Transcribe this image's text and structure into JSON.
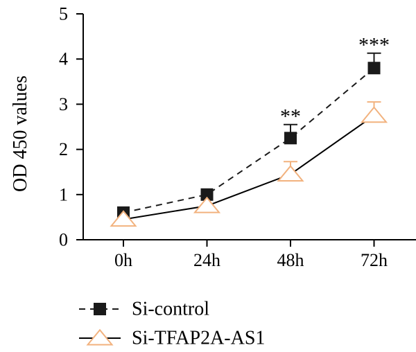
{
  "chart_data": {
    "type": "line",
    "title": "",
    "xlabel": "",
    "ylabel": "OD 450 values",
    "categories": [
      "0h",
      "24h",
      "48h",
      "72h"
    ],
    "ylim": [
      0,
      5
    ],
    "yticks": [
      0,
      1,
      2,
      3,
      4,
      5
    ],
    "grid": false,
    "legend_position": "bottom-left",
    "series": [
      {
        "name": "Si-control",
        "values": [
          0.6,
          1.0,
          2.25,
          3.8
        ],
        "error": [
          0.0,
          0.0,
          0.3,
          0.33
        ],
        "marker": "square",
        "line_style": "dashed",
        "color": "#1a1a1a"
      },
      {
        "name": "Si-TFAP2A-AS1",
        "values": [
          0.45,
          0.75,
          1.45,
          2.75
        ],
        "error": [
          0.0,
          0.0,
          0.28,
          0.3
        ],
        "marker": "triangle-open",
        "line_style": "solid",
        "color": "#f2b27e",
        "line_color": "#000000"
      }
    ],
    "annotations": [
      {
        "category": "48h",
        "text": "**"
      },
      {
        "category": "72h",
        "text": "***"
      }
    ]
  }
}
